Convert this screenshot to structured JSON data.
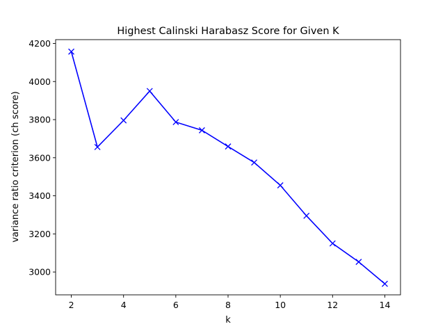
{
  "chart_data": {
    "type": "line",
    "title": "Highest Calinski Harabasz Score for Given K",
    "xlabel": "k",
    "ylabel": "variance ratio criterion (ch score)",
    "xlim": [
      1.4,
      14.6
    ],
    "ylim": [
      2880,
      4220
    ],
    "xticks": [
      2,
      4,
      6,
      8,
      10,
      12,
      14
    ],
    "yticks": [
      3000,
      3200,
      3400,
      3600,
      3800,
      4000,
      4200
    ],
    "grid": false,
    "marker": "x",
    "color": "#0000ff",
    "series": [
      {
        "x": [
          2,
          3,
          4,
          5,
          6,
          7,
          8,
          9,
          10,
          11,
          12,
          13,
          14
        ],
        "values": [
          4157,
          3656,
          3796,
          3950,
          3787,
          3744,
          3659,
          3575,
          3455,
          3295,
          3150,
          3053,
          2938
        ]
      }
    ]
  }
}
